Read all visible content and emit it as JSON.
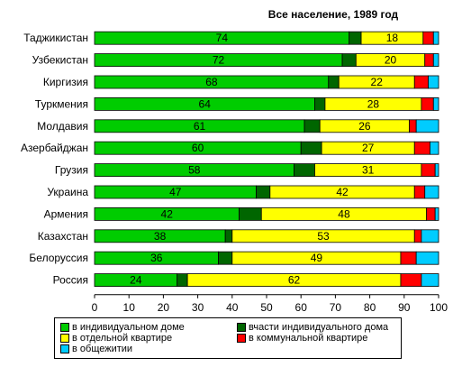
{
  "chart_data": {
    "type": "bar",
    "orientation": "horizontal",
    "stacked": true,
    "title": "Все население, 1989 год",
    "categories": [
      "Таджикистан",
      "Узбекистан",
      "Киргизия",
      "Туркмения",
      "Молдавия",
      "Азербайджан",
      "Грузия",
      "Украина",
      "Армения",
      "Казахстан",
      "Белоруссия",
      "Россия"
    ],
    "series": [
      {
        "name": "в индивидуальном доме",
        "color": "#00cc00",
        "values": [
          74,
          72,
          68,
          64,
          61,
          60,
          58,
          47,
          42,
          38,
          36,
          24
        ],
        "labeled": true
      },
      {
        "name": "вчасти индивидуального дома",
        "color": "#006600",
        "values": [
          3.5,
          4,
          3,
          3,
          4.5,
          6,
          6,
          4,
          6.5,
          2,
          4,
          3
        ],
        "labeled": false
      },
      {
        "name": "в отдельной квартире",
        "color": "#ffff00",
        "values": [
          18,
          20,
          22,
          28,
          26,
          27,
          31,
          42,
          48,
          53,
          49,
          62
        ],
        "labeled": true
      },
      {
        "name": "в коммунальной квартире",
        "color": "#ff0000",
        "values": [
          3,
          2.5,
          4,
          3.5,
          2,
          4.5,
          4,
          3,
          2.5,
          2,
          4.5,
          6
        ],
        "labeled": false
      },
      {
        "name": "в общежитии",
        "color": "#00ccff",
        "values": [
          1.5,
          1.5,
          3,
          1.5,
          6.5,
          2.5,
          1,
          4,
          1,
          5,
          6.5,
          5
        ],
        "labeled": false
      }
    ],
    "xlim": [
      0,
      100
    ],
    "xticks": [
      0,
      10,
      20,
      30,
      40,
      50,
      60,
      70,
      80,
      90,
      100
    ],
    "legend_position": "bottom",
    "grid": false
  }
}
